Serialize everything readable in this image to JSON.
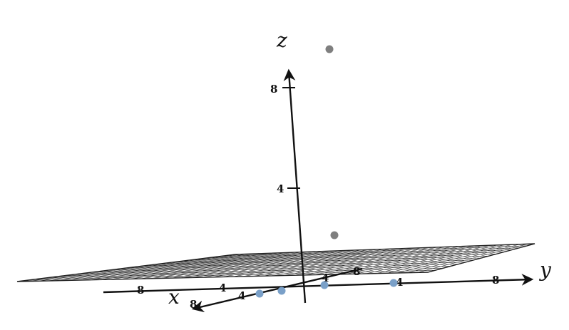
{
  "axes": {
    "x": {
      "name": "x",
      "ticks": [
        "4",
        "8"
      ]
    },
    "y": {
      "name": "y",
      "ticks": [
        "8",
        "4",
        "4",
        "8"
      ]
    },
    "z": {
      "name": "z",
      "ticks": [
        "4",
        "8"
      ]
    }
  },
  "colors": {
    "axis": "#111111",
    "plane_mesh": "#2a2a2a",
    "gray_point": "#7f7f7f",
    "blue_point": "#7aa0c8"
  },
  "points": {
    "gray_count": 2,
    "blue_count": 4
  }
}
